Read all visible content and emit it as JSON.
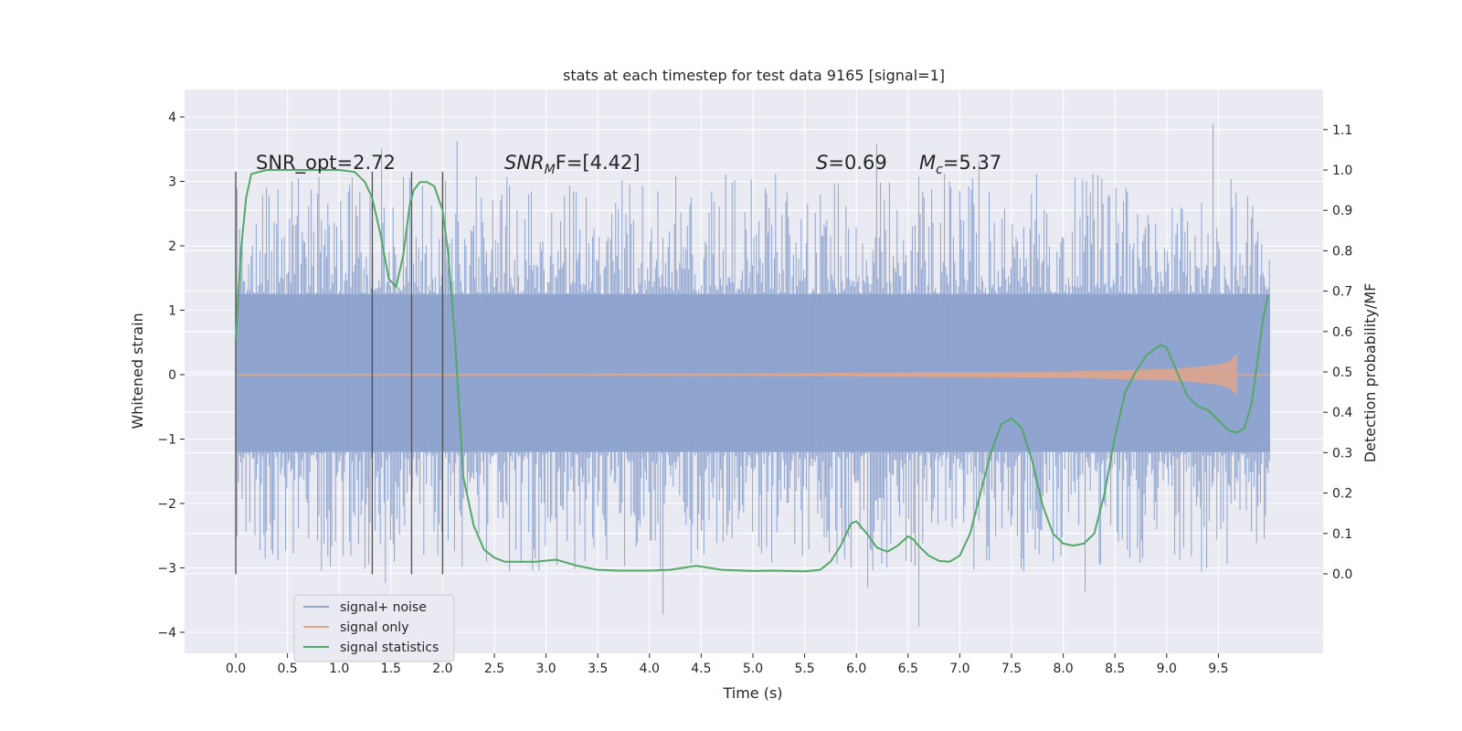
{
  "chart_data": {
    "type": "line",
    "title": "stats at each timestep for test data 9165 [signal=1]",
    "xlabel": "Time (s)",
    "ylabel_left": "Whitened strain",
    "ylabel_right": "Detection probability/MF",
    "xlim": [
      -0.48,
      10.5
    ],
    "ylim_left": [
      -4.35,
      4.42
    ],
    "ylim_right": [
      -0.15,
      1.18
    ],
    "x_ticks": [
      "0.0",
      "0.5",
      "1.0",
      "1.5",
      "2.0",
      "2.5",
      "3.0",
      "3.5",
      "4.0",
      "4.5",
      "5.0",
      "5.5",
      "6.0",
      "6.5",
      "7.0",
      "7.5",
      "8.0",
      "8.5",
      "9.0",
      "9.5"
    ],
    "y_left_ticks": [
      "4",
      "3",
      "2",
      "1",
      "0",
      "−1",
      "−2",
      "−3",
      "−4"
    ],
    "y_right_ticks": [
      "1.1",
      "1.0",
      "0.9",
      "0.8",
      "0.7",
      "0.6",
      "0.5",
      "0.4",
      "0.3",
      "0.2",
      "0.1",
      "0.0"
    ],
    "grid": true,
    "legend_position": "lower-left",
    "annotations": {
      "snr_opt": "SNR_opt=2.72",
      "snr_mf_base": "SNR",
      "snr_mf_sub": "M",
      "snr_mf_rest": "F=[4.42]",
      "s_label": "S",
      "s_value": "=0.69",
      "mc_base": "M",
      "mc_sub": "c",
      "mc_value": "=5.37"
    },
    "series": [
      {
        "name": "signal+ noise",
        "color": "#8fa4cf",
        "axis": "left",
        "description_values": {
          "band_low": -1.2,
          "band_high": 1.25,
          "peak_max": 4.05,
          "peak_min": -3.95,
          "x_start": 0.0,
          "x_end": 10.0
        }
      },
      {
        "name": "signal only",
        "color": "#e0a68a",
        "axis": "left",
        "envelope_x": [
          0.0,
          5.0,
          6.0,
          7.0,
          8.0,
          8.5,
          9.0,
          9.3,
          9.5,
          9.6,
          9.65,
          9.68
        ],
        "envelope_amp": [
          0.01,
          0.02,
          0.03,
          0.04,
          0.05,
          0.07,
          0.09,
          0.12,
          0.16,
          0.2,
          0.28,
          0.32
        ]
      },
      {
        "name": "signal statistics",
        "color": "#55a868",
        "axis": "right",
        "x": [
          0.0,
          0.05,
          0.1,
          0.15,
          0.3,
          0.5,
          0.8,
          1.0,
          1.15,
          1.25,
          1.32,
          1.4,
          1.48,
          1.55,
          1.62,
          1.68,
          1.72,
          1.78,
          1.85,
          1.92,
          2.0,
          2.05,
          2.12,
          2.2,
          2.3,
          2.4,
          2.5,
          2.6,
          2.75,
          2.9,
          3.1,
          3.3,
          3.5,
          3.7,
          4.0,
          4.2,
          4.45,
          4.7,
          5.0,
          5.2,
          5.5,
          5.65,
          5.75,
          5.85,
          5.95,
          6.0,
          6.1,
          6.2,
          6.3,
          6.4,
          6.5,
          6.55,
          6.6,
          6.7,
          6.8,
          6.9,
          7.0,
          7.1,
          7.2,
          7.3,
          7.4,
          7.5,
          7.6,
          7.7,
          7.8,
          7.9,
          8.0,
          8.1,
          8.2,
          8.3,
          8.4,
          8.5,
          8.6,
          8.7,
          8.8,
          8.9,
          8.95,
          9.0,
          9.1,
          9.2,
          9.3,
          9.4,
          9.5,
          9.6,
          9.68,
          9.75,
          9.82,
          9.88,
          9.93,
          9.98
        ],
        "y": [
          0.58,
          0.8,
          0.93,
          0.99,
          1.0,
          1.0,
          1.0,
          1.0,
          0.995,
          0.97,
          0.93,
          0.84,
          0.73,
          0.71,
          0.79,
          0.91,
          0.95,
          0.97,
          0.97,
          0.96,
          0.9,
          0.8,
          0.58,
          0.24,
          0.12,
          0.06,
          0.04,
          0.03,
          0.03,
          0.03,
          0.035,
          0.02,
          0.01,
          0.008,
          0.008,
          0.01,
          0.02,
          0.01,
          0.007,
          0.008,
          0.006,
          0.01,
          0.03,
          0.07,
          0.125,
          0.13,
          0.1,
          0.065,
          0.055,
          0.07,
          0.093,
          0.085,
          0.07,
          0.045,
          0.032,
          0.03,
          0.045,
          0.1,
          0.2,
          0.3,
          0.37,
          0.385,
          0.36,
          0.28,
          0.17,
          0.1,
          0.075,
          0.07,
          0.075,
          0.1,
          0.2,
          0.34,
          0.45,
          0.5,
          0.54,
          0.56,
          0.566,
          0.56,
          0.5,
          0.44,
          0.415,
          0.405,
          0.38,
          0.355,
          0.35,
          0.36,
          0.42,
          0.53,
          0.63,
          0.69
        ]
      }
    ],
    "vertical_markers": [
      {
        "x": 0.0,
        "y_top": 3.15,
        "y_bottom": -3.1
      },
      {
        "x": 1.32,
        "y_top": 3.15,
        "y_bottom": -3.1
      },
      {
        "x": 1.7,
        "y_top": 3.15,
        "y_bottom": -3.1
      },
      {
        "x": 2.0,
        "y_top": 3.15,
        "y_bottom": -3.1
      }
    ]
  }
}
